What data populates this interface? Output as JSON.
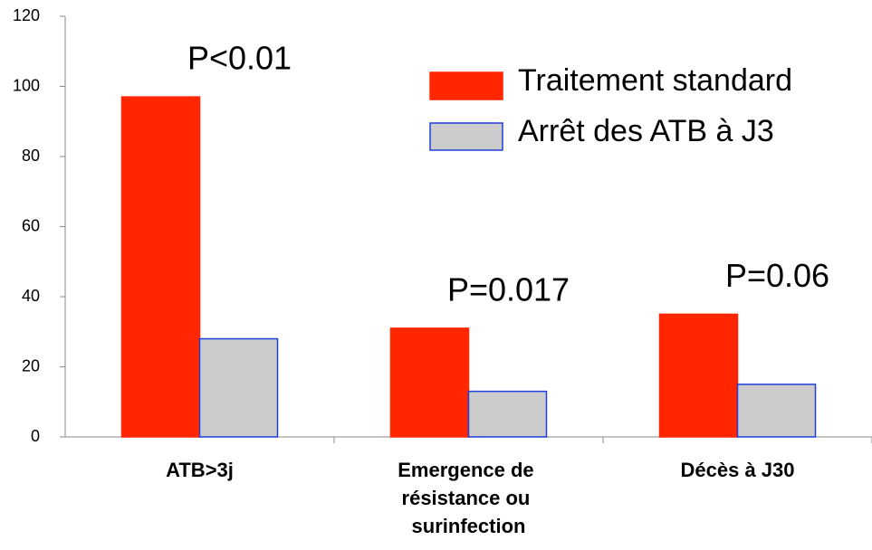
{
  "chart_data": {
    "type": "bar",
    "categories": [
      "ATB>3j",
      "Emergence de résistance ou surinfection",
      "Décès à J30"
    ],
    "series": [
      {
        "name": "Traitement standard",
        "color": "#ff2600",
        "edge": "#ff2600",
        "values": [
          97,
          31,
          35
        ]
      },
      {
        "name": "Arrêt des ATB à J3",
        "color": "#cccccc",
        "edge": "#1f3fdc",
        "values": [
          28,
          13,
          15
        ]
      }
    ],
    "annotations": [
      "P<0.01",
      "P=0.017",
      "P=0.06"
    ],
    "ylim": [
      0,
      120
    ],
    "yticks": [
      0,
      20,
      40,
      60,
      80,
      100,
      120
    ],
    "grid": false,
    "legend": "upper right"
  }
}
